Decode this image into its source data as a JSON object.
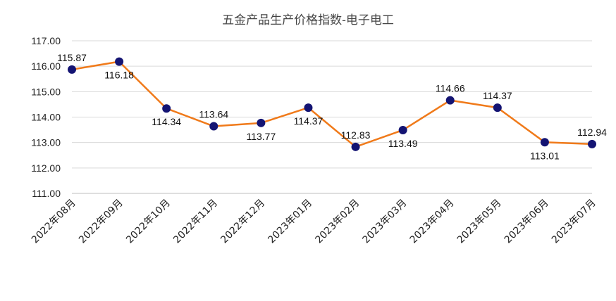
{
  "chart_data": {
    "type": "line",
    "title": "五金产品生产价格指数-电子电工",
    "xlabel": "",
    "ylabel": "",
    "categories": [
      "2022年08月",
      "2022年09月",
      "2022年10月",
      "2022年11月",
      "2022年12月",
      "2023年01月",
      "2023年02月",
      "2023年03月",
      "2023年04月",
      "2023年05月",
      "2023年06月",
      "2023年07月"
    ],
    "series": [
      {
        "values": [
          115.87,
          116.18,
          114.34,
          113.64,
          113.77,
          114.37,
          112.83,
          113.49,
          114.66,
          114.37,
          113.01,
          112.94
        ],
        "labels": [
          "115.87",
          "116.18",
          "114.34",
          "113.64",
          "113.77",
          "114.37",
          "112.83",
          "113.49",
          "114.66",
          "114.37",
          "113.01",
          "112.94"
        ],
        "label_positions": [
          "above",
          "below",
          "below",
          "above",
          "below",
          "below",
          "above",
          "below",
          "above",
          "above",
          "below",
          "above"
        ],
        "line_color": "#F07A1A",
        "marker_color": "#141473"
      }
    ],
    "ylim": [
      111,
      117
    ],
    "yticks": [
      "111.00",
      "112.00",
      "113.00",
      "114.00",
      "115.00",
      "116.00",
      "117.00"
    ],
    "grid": true,
    "grid_color": "#D9D9D9",
    "legend": "none"
  }
}
